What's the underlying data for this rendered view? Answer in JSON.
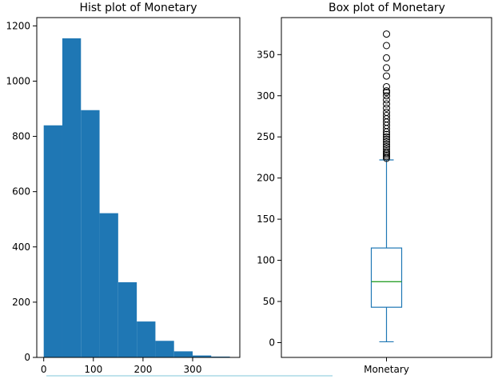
{
  "chart_data": [
    {
      "type": "histogram",
      "title": "Hist plot of Monetary",
      "xlabel": "",
      "ylabel": "",
      "xlim": [
        -14,
        395
      ],
      "ylim": [
        0,
        1230
      ],
      "xticks": [
        0,
        100,
        200,
        300
      ],
      "yticks": [
        0,
        200,
        400,
        600,
        800,
        1000,
        1200
      ],
      "bins": [
        {
          "x0": 0,
          "x1": 37.5,
          "count": 840
        },
        {
          "x0": 37.5,
          "x1": 75,
          "count": 1155
        },
        {
          "x0": 75,
          "x1": 112.5,
          "count": 895
        },
        {
          "x0": 112.5,
          "x1": 150,
          "count": 522
        },
        {
          "x0": 150,
          "x1": 187.5,
          "count": 272
        },
        {
          "x0": 187.5,
          "x1": 225,
          "count": 130
        },
        {
          "x0": 225,
          "x1": 262.5,
          "count": 60
        },
        {
          "x0": 262.5,
          "x1": 300,
          "count": 22
        },
        {
          "x0": 300,
          "x1": 337.5,
          "count": 7
        },
        {
          "x0": 337.5,
          "x1": 375,
          "count": 3
        }
      ],
      "bar_color": "#1f77b4"
    },
    {
      "type": "box",
      "title": "Box plot of Monetary",
      "xlabel": "",
      "ylabel": "",
      "categories": [
        "Monetary"
      ],
      "ylim": [
        -18,
        395
      ],
      "yticks": [
        0,
        50,
        100,
        150,
        200,
        250,
        300,
        350
      ],
      "whisker_low": 1,
      "q1": 43,
      "median": 74,
      "q3": 115,
      "whisker_high": 222,
      "outliers": [
        224,
        226,
        228,
        230,
        232,
        235,
        238,
        241,
        244,
        247,
        250,
        253,
        256,
        260,
        264,
        268,
        272,
        276,
        280,
        285,
        290,
        295,
        300,
        304,
        306,
        311,
        324,
        334,
        346,
        361,
        375
      ],
      "box_color": "#1f77b4",
      "median_color": "#2ca02c"
    }
  ]
}
